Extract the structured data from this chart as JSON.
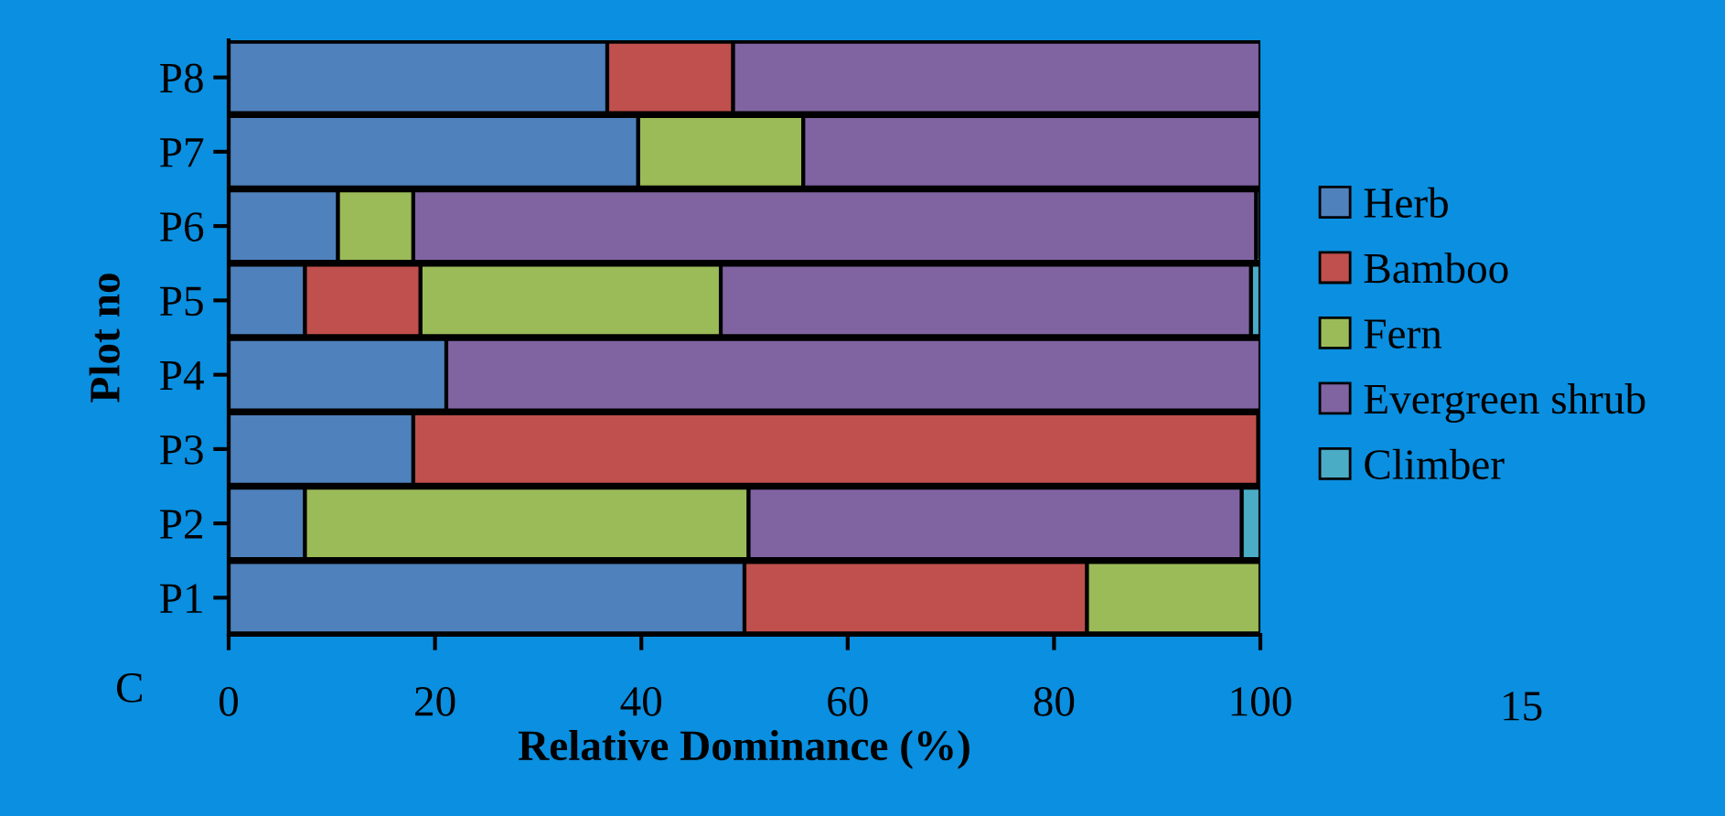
{
  "chart_data": {
    "type": "bar",
    "orientation": "horizontal",
    "stacked": true,
    "categories": [
      "P8",
      "P7",
      "P6",
      "P5",
      "P4",
      "P3",
      "P2",
      "P1"
    ],
    "series": [
      {
        "name": "Herb",
        "color": "#4f81bd",
        "values": [
          36.7,
          39.7,
          10.6,
          7.4,
          21.1,
          17.9,
          7.4,
          50.0
        ]
      },
      {
        "name": "Bamboo",
        "color": "#c0504d",
        "values": [
          12.2,
          null,
          null,
          11.2,
          null,
          81.9,
          null,
          33.2
        ]
      },
      {
        "name": "Fern",
        "color": "#9bbb59",
        "values": [
          null,
          16.0,
          7.3,
          29.1,
          null,
          null,
          43.0,
          16.8
        ]
      },
      {
        "name": "Evergreen shrub",
        "color": "#8064a2",
        "values": [
          51.1,
          44.3,
          81.7,
          51.4,
          78.9,
          null,
          47.8,
          null
        ]
      },
      {
        "name": "Climber",
        "color": "#4bacc6",
        "values": [
          null,
          null,
          0.4,
          0.9,
          null,
          0.2,
          1.8,
          null
        ]
      }
    ],
    "xlabel": "Relative Dominance (%)",
    "ylabel": "Plot no",
    "xlim": [
      0,
      100
    ],
    "xticks": [
      0,
      20,
      40,
      60,
      80,
      100
    ],
    "legend": "right",
    "grid": false,
    "annotations": [
      "C",
      "15"
    ]
  }
}
